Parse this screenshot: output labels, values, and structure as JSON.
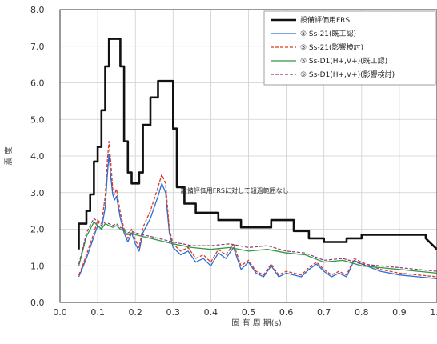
{
  "chart_data": {
    "type": "line",
    "xlabel": "固 有 周 期(s)",
    "ylabel": "震 度",
    "xlim": [
      0.0,
      1.0
    ],
    "ylim": [
      0.0,
      8.0
    ],
    "xticks": [
      "0.0",
      "0.1",
      "0.2",
      "0.3",
      "0.4",
      "0.5",
      "0.6",
      "0.7",
      "0.8",
      "0.9",
      "1.0"
    ],
    "yticks": [
      "0.0",
      "1.0",
      "2.0",
      "3.0",
      "4.0",
      "5.0",
      "6.0",
      "7.0",
      "8.0"
    ],
    "grid": true,
    "legend_position": "top-right",
    "annotation": "設備評価用FRSに対して超過範囲なし",
    "series": [
      {
        "name": "設備評価用FRS",
        "color": "#111111",
        "dash": "solid",
        "width": 2.6,
        "x": [
          0.05,
          0.05,
          0.07,
          0.07,
          0.08,
          0.08,
          0.09,
          0.09,
          0.1,
          0.1,
          0.11,
          0.11,
          0.12,
          0.12,
          0.13,
          0.13,
          0.16,
          0.16,
          0.17,
          0.17,
          0.18,
          0.18,
          0.19,
          0.19,
          0.21,
          0.21,
          0.22,
          0.22,
          0.24,
          0.24,
          0.26,
          0.26,
          0.3,
          0.3,
          0.31,
          0.31,
          0.33,
          0.33,
          0.36,
          0.36,
          0.42,
          0.42,
          0.48,
          0.48,
          0.56,
          0.56,
          0.62,
          0.62,
          0.66,
          0.66,
          0.7,
          0.7,
          0.76,
          0.76,
          0.8,
          0.8,
          0.97,
          0.97,
          1.0
        ],
        "y": [
          1.45,
          2.15,
          2.15,
          2.5,
          2.5,
          2.95,
          2.95,
          3.85,
          3.85,
          4.25,
          4.25,
          5.25,
          5.25,
          6.45,
          6.45,
          7.2,
          7.2,
          6.45,
          6.45,
          4.4,
          4.4,
          3.55,
          3.55,
          3.25,
          3.25,
          3.55,
          3.55,
          4.85,
          4.85,
          5.6,
          5.6,
          6.05,
          6.05,
          4.75,
          4.75,
          3.15,
          3.15,
          2.7,
          2.7,
          2.45,
          2.45,
          2.25,
          2.25,
          2.05,
          2.05,
          2.25,
          2.25,
          1.95,
          1.95,
          1.75,
          1.75,
          1.65,
          1.65,
          1.75,
          1.75,
          1.85,
          1.85,
          1.75,
          1.45
        ]
      },
      {
        "name": "⑤ Ss-21(既工認)",
        "color": "#2a6fd6",
        "dash": "solid",
        "width": 1.3,
        "x": [
          0.05,
          0.06,
          0.07,
          0.08,
          0.09,
          0.1,
          0.11,
          0.12,
          0.125,
          0.13,
          0.135,
          0.14,
          0.145,
          0.15,
          0.16,
          0.17,
          0.18,
          0.19,
          0.2,
          0.21,
          0.22,
          0.24,
          0.26,
          0.27,
          0.28,
          0.29,
          0.3,
          0.32,
          0.34,
          0.36,
          0.38,
          0.4,
          0.42,
          0.44,
          0.46,
          0.48,
          0.5,
          0.52,
          0.54,
          0.56,
          0.58,
          0.6,
          0.62,
          0.64,
          0.66,
          0.68,
          0.7,
          0.72,
          0.74,
          0.76,
          0.78,
          0.8,
          0.85,
          0.9,
          0.95,
          1.0
        ],
        "y": [
          0.7,
          0.95,
          1.2,
          1.5,
          1.8,
          2.1,
          2.0,
          2.6,
          3.4,
          4.05,
          3.4,
          2.95,
          2.8,
          2.9,
          2.3,
          1.9,
          1.65,
          1.9,
          1.6,
          1.4,
          1.9,
          2.3,
          2.9,
          3.25,
          3.0,
          1.9,
          1.5,
          1.3,
          1.4,
          1.1,
          1.2,
          1.0,
          1.35,
          1.2,
          1.5,
          0.9,
          1.1,
          0.8,
          0.7,
          1.0,
          0.7,
          0.8,
          0.75,
          0.7,
          0.9,
          1.05,
          0.85,
          0.7,
          0.8,
          0.7,
          1.15,
          1.05,
          0.85,
          0.75,
          0.7,
          0.65
        ]
      },
      {
        "name": "⑤ Ss-21(影響検討)",
        "color": "#d83a2a",
        "dash": "dashed",
        "width": 1.3,
        "x": [
          0.05,
          0.06,
          0.07,
          0.08,
          0.09,
          0.1,
          0.11,
          0.12,
          0.125,
          0.13,
          0.135,
          0.14,
          0.145,
          0.15,
          0.16,
          0.17,
          0.18,
          0.19,
          0.2,
          0.21,
          0.22,
          0.24,
          0.26,
          0.27,
          0.28,
          0.29,
          0.3,
          0.32,
          0.34,
          0.36,
          0.38,
          0.4,
          0.42,
          0.44,
          0.46,
          0.48,
          0.5,
          0.52,
          0.54,
          0.56,
          0.58,
          0.6,
          0.62,
          0.64,
          0.66,
          0.68,
          0.7,
          0.72,
          0.74,
          0.76,
          0.78,
          0.8,
          0.85,
          0.9,
          0.95,
          1.0
        ],
        "y": [
          0.75,
          1.0,
          1.3,
          1.6,
          1.9,
          2.25,
          2.15,
          2.9,
          3.8,
          4.4,
          3.8,
          3.1,
          2.95,
          3.1,
          2.45,
          2.0,
          1.75,
          2.0,
          1.7,
          1.5,
          2.05,
          2.5,
          3.15,
          3.5,
          3.25,
          2.0,
          1.6,
          1.4,
          1.5,
          1.2,
          1.3,
          1.1,
          1.45,
          1.3,
          1.6,
          1.0,
          1.15,
          0.85,
          0.75,
          1.05,
          0.75,
          0.85,
          0.8,
          0.75,
          0.95,
          1.1,
          0.9,
          0.75,
          0.85,
          0.75,
          1.2,
          1.1,
          0.9,
          0.8,
          0.75,
          0.7
        ]
      },
      {
        "name": "⑤ Ss-D1(H+,V+)(既工認)",
        "color": "#2e9a3c",
        "dash": "solid",
        "width": 1.3,
        "x": [
          0.05,
          0.06,
          0.07,
          0.08,
          0.09,
          0.1,
          0.11,
          0.12,
          0.13,
          0.14,
          0.15,
          0.16,
          0.17,
          0.18,
          0.19,
          0.2,
          0.22,
          0.24,
          0.26,
          0.28,
          0.3,
          0.35,
          0.4,
          0.45,
          0.5,
          0.55,
          0.6,
          0.65,
          0.7,
          0.75,
          0.8,
          0.85,
          0.9,
          0.95,
          1.0
        ],
        "y": [
          1.0,
          1.4,
          1.8,
          2.0,
          2.2,
          2.1,
          2.0,
          2.15,
          2.1,
          2.05,
          2.1,
          2.0,
          1.95,
          1.85,
          1.9,
          1.85,
          1.8,
          1.75,
          1.7,
          1.65,
          1.6,
          1.5,
          1.45,
          1.5,
          1.4,
          1.45,
          1.35,
          1.3,
          1.1,
          1.15,
          1.0,
          0.95,
          0.9,
          0.85,
          0.8
        ]
      },
      {
        "name": "⑤ Ss-D1(H+,V+)(影響検討)",
        "color": "#8a3a7a",
        "dash": "dashed",
        "width": 1.2,
        "x": [
          0.05,
          0.06,
          0.07,
          0.08,
          0.09,
          0.1,
          0.11,
          0.12,
          0.13,
          0.14,
          0.15,
          0.16,
          0.17,
          0.18,
          0.19,
          0.2,
          0.22,
          0.24,
          0.26,
          0.28,
          0.3,
          0.35,
          0.4,
          0.45,
          0.5,
          0.55,
          0.6,
          0.65,
          0.7,
          0.75,
          0.8,
          0.85,
          0.9,
          0.95,
          1.0
        ],
        "y": [
          1.05,
          1.45,
          1.9,
          2.1,
          2.3,
          2.2,
          2.1,
          2.2,
          2.15,
          2.1,
          2.15,
          2.05,
          2.0,
          1.9,
          1.95,
          1.9,
          1.85,
          1.8,
          1.75,
          1.7,
          1.65,
          1.55,
          1.55,
          1.6,
          1.5,
          1.55,
          1.4,
          1.35,
          1.15,
          1.2,
          1.05,
          1.0,
          0.95,
          0.9,
          0.85
        ]
      }
    ]
  }
}
